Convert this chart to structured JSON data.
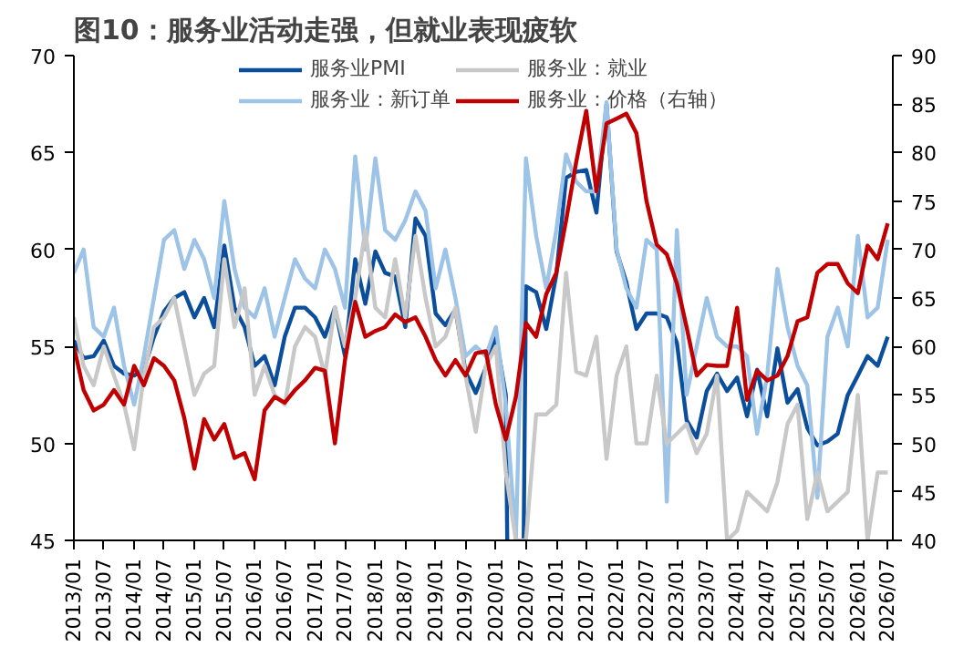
{
  "chart_data": {
    "type": "line",
    "title": "图10：服务业活动走强，但就业表现疲软",
    "x": [
      "2013-01",
      "2013-03",
      "2013-05",
      "2013-07",
      "2013-09",
      "2013-11",
      "2014-01",
      "2014-03",
      "2014-05",
      "2014-07",
      "2014-09",
      "2014-11",
      "2015-01",
      "2015-03",
      "2015-05",
      "2015-07",
      "2015-09",
      "2015-11",
      "2016-01",
      "2016-03",
      "2016-05",
      "2016-07",
      "2016-09",
      "2016-11",
      "2017-01",
      "2017-03",
      "2017-05",
      "2017-07",
      "2017-09",
      "2017-11",
      "2018-01",
      "2018-03",
      "2018-05",
      "2018-07",
      "2018-09",
      "2018-11",
      "2019-01",
      "2019-03",
      "2019-05",
      "2019-07",
      "2019-09",
      "2019-11",
      "2020-01",
      "2020-03",
      "2020-05",
      "2020-07",
      "2020-09",
      "2020-11",
      "2021-01",
      "2021-03",
      "2021-05",
      "2021-07",
      "2021-09",
      "2021-11",
      "2022-01",
      "2022-03",
      "2022-05",
      "2022-07",
      "2022-09",
      "2022-11",
      "2023-01",
      "2023-03",
      "2023-05",
      "2023-07",
      "2023-09",
      "2023-11",
      "2024-01",
      "2024-03",
      "2024-05",
      "2024-07",
      "2024-09",
      "2024-11",
      "2025-01",
      "2025-03",
      "2025-05",
      "2025-07",
      "2025-09",
      "2025-11",
      "2026-01",
      "2026-03",
      "2026-05",
      "2026-07"
    ],
    "series": [
      {
        "name": "服务业PMI",
        "color": "#0b4f9c",
        "values": [
          55.3,
          54.4,
          54.5,
          55.3,
          54.0,
          53.6,
          53.5,
          53.8,
          55.5,
          56.8,
          57.5,
          57.8,
          56.5,
          57.5,
          56.0,
          60.2,
          57.0,
          56.0,
          54.0,
          54.5,
          53.0,
          55.5,
          57.0,
          57.0,
          56.5,
          55.5,
          57.0,
          54.5,
          59.5,
          57.2,
          59.9,
          58.8,
          58.6,
          56.0,
          61.6,
          60.7,
          56.7,
          56.1,
          56.9,
          53.7,
          52.6,
          53.9,
          55.5,
          52.5,
          null,
          58.1,
          57.8,
          55.9,
          58.7,
          63.7,
          64.0,
          64.1,
          61.9,
          67.5,
          59.9,
          58.3,
          55.9,
          56.7,
          56.7,
          56.5,
          55.2,
          51.2,
          50.3,
          52.7,
          53.6,
          52.7,
          53.4,
          51.4,
          53.8,
          51.4,
          54.9,
          52.1,
          52.8,
          50.8,
          49.9,
          50.1,
          50.5,
          52.5,
          53.5,
          54.5,
          54.0,
          55.5
        ]
      },
      {
        "name": "服务业：新订单",
        "color": "#9dc3e6",
        "values": [
          58.8,
          60.0,
          56.0,
          55.5,
          57.0,
          54.0,
          52.0,
          54.5,
          57.5,
          60.5,
          61.0,
          59.0,
          60.5,
          59.5,
          57.5,
          62.5,
          59.0,
          57.0,
          56.5,
          58.0,
          55.5,
          57.5,
          59.5,
          58.5,
          58.0,
          60.0,
          59.0,
          57.0,
          64.8,
          60.0,
          64.7,
          61.0,
          60.5,
          61.5,
          63.0,
          62.0,
          58.0,
          60.0,
          57.5,
          54.5,
          55.0,
          54.5,
          56.0,
          52.0,
          45.0,
          64.7,
          60.7,
          58.0,
          61.0,
          64.9,
          63.5,
          63.0,
          63.0,
          67.6,
          60.0,
          58.0,
          57.0,
          60.5,
          60.0,
          47.0,
          61.0,
          52.5,
          55.0,
          57.5,
          55.5,
          55.0,
          55.0,
          54.5,
          50.5,
          53.5,
          59.0,
          56.0,
          54.0,
          53.0,
          47.2,
          55.5,
          57.0,
          55.0,
          60.7,
          56.5,
          57.0,
          60.5
        ]
      },
      {
        "name": "服务业：就业",
        "color": "#c8c8c8",
        "values": [
          56.5,
          54.0,
          53.0,
          55.0,
          53.5,
          52.0,
          49.7,
          53.5,
          56.0,
          56.5,
          57.5,
          55.0,
          52.5,
          53.6,
          54.0,
          59.5,
          56.0,
          58.0,
          52.5,
          54.0,
          52.5,
          52.0,
          55.0,
          56.0,
          55.5,
          53.5,
          57.0,
          55.0,
          57.5,
          61.0,
          57.0,
          56.5,
          59.5,
          56.5,
          60.7,
          57.5,
          55.0,
          55.5,
          57.0,
          53.5,
          50.6,
          54.0,
          55.0,
          48.5,
          45.0,
          45.0,
          51.5,
          51.5,
          52.0,
          58.8,
          53.7,
          53.5,
          55.5,
          49.2,
          53.5,
          55.0,
          50.0,
          50.0,
          53.5,
          50.0,
          50.5,
          51.0,
          49.5,
          50.5,
          53.5,
          45.0,
          45.5,
          47.5,
          47.0,
          46.5,
          48.0,
          51.0,
          52.0,
          46.1,
          48.5,
          46.5,
          47.0,
          47.5,
          52.5,
          45.0,
          48.5,
          48.5
        ]
      },
      {
        "name": "服务业：价格（右轴）",
        "color": "#c00000",
        "axis": "y2",
        "values": [
          60.0,
          55.5,
          53.4,
          54.0,
          55.5,
          54.0,
          58.0,
          56.0,
          58.8,
          58.0,
          56.5,
          52.6,
          47.4,
          52.5,
          50.4,
          52.0,
          48.5,
          49.0,
          46.3,
          53.4,
          54.8,
          54.2,
          55.5,
          56.5,
          57.8,
          57.5,
          50.0,
          58.6,
          64.6,
          61.0,
          61.6,
          62.0,
          63.3,
          62.5,
          63.0,
          61.0,
          58.6,
          57.0,
          58.6,
          57.0,
          59.3,
          59.5,
          54.0,
          50.4,
          54.8,
          62.4,
          61.0,
          65.4,
          67.6,
          73.0,
          79.0,
          84.3,
          76.0,
          83.0,
          83.5,
          84.0,
          82.0,
          75.0,
          70.5,
          69.5,
          66.5,
          62.0,
          57.0,
          58.1,
          58.0,
          58.0,
          64.0,
          54.5,
          57.5,
          56.5,
          57.0,
          59.0,
          62.6,
          63.0,
          67.6,
          68.5,
          68.5,
          66.5,
          65.5,
          70.4,
          69.0,
          72.7
        ]
      }
    ],
    "xlim": [
      "2013-01",
      "2026-08"
    ],
    "xticks": [
      {
        "value": "2013-01",
        "label": "2013/01"
      },
      {
        "value": "2013-07",
        "label": "2013/07"
      },
      {
        "value": "2014-01",
        "label": "2014/01"
      },
      {
        "value": "2014-07",
        "label": "2014/07"
      },
      {
        "value": "2015-01",
        "label": "2015/01"
      },
      {
        "value": "2015-07",
        "label": "2015/07"
      },
      {
        "value": "2016-01",
        "label": "2016/01"
      },
      {
        "value": "2016-07",
        "label": "2016/07"
      },
      {
        "value": "2017-01",
        "label": "2017/01"
      },
      {
        "value": "2017-07",
        "label": "2017/07"
      },
      {
        "value": "2018-01",
        "label": "2018/01"
      },
      {
        "value": "2018-07",
        "label": "2018/07"
      },
      {
        "value": "2019-01",
        "label": "2019/01"
      },
      {
        "value": "2019-07",
        "label": "2019/07"
      },
      {
        "value": "2020-01",
        "label": "2020/01"
      },
      {
        "value": "2020-07",
        "label": "2020/07"
      },
      {
        "value": "2021-01",
        "label": "2021/01"
      },
      {
        "value": "2021-07",
        "label": "2021/07"
      },
      {
        "value": "2022-01",
        "label": "2022/01"
      },
      {
        "value": "2022-07",
        "label": "2022/07"
      },
      {
        "value": "2023-01",
        "label": "2023/01"
      },
      {
        "value": "2023-07",
        "label": "2023/07"
      },
      {
        "value": "2024-01",
        "label": "2024/01"
      },
      {
        "value": "2024-07",
        "label": "2024/07"
      },
      {
        "value": "2025-01",
        "label": "2025/01"
      },
      {
        "value": "2025-07",
        "label": "2025/07"
      },
      {
        "value": "2026-01",
        "label": "2026/01"
      },
      {
        "value": "2026-07",
        "label": "2026/07"
      }
    ],
    "ylim": [
      45,
      70
    ],
    "yticks": [
      45,
      50,
      55,
      60,
      65,
      70
    ],
    "y2lim": [
      40,
      90
    ],
    "y2ticks": [
      40,
      45,
      50,
      55,
      60,
      65,
      70,
      75,
      80,
      85,
      90
    ],
    "legend": "top",
    "grid": false,
    "marker": "none",
    "line_style": "solid"
  }
}
